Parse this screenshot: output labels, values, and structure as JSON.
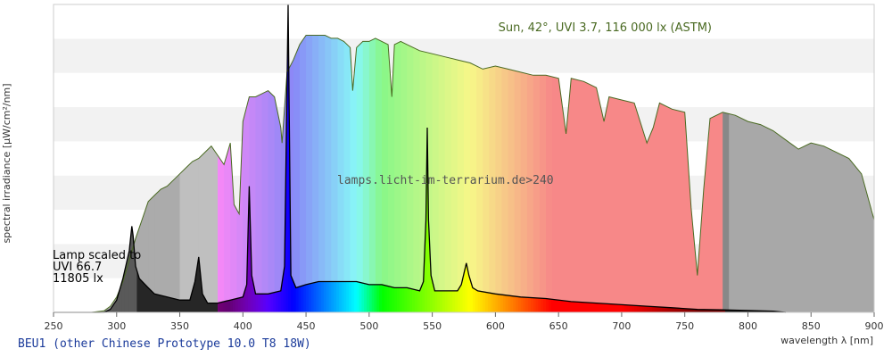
{
  "chart_data": {
    "type": "area",
    "title": "Sun, 42°, UVI 3.7, 116 000 lx (ASTM)",
    "caption": "BEU1 (other Chinese Prototype 10.0 T8 18W)",
    "watermark": "lamps.licht-im-terrarium.de>240",
    "xlabel": "wavelength λ [nm]",
    "ylabel": "spectral irradiance [µW/cm²/nm]",
    "xlim": [
      250,
      900
    ],
    "ylim": [
      0,
      1
    ],
    "x_ticks": [
      250,
      300,
      350,
      400,
      450,
      500,
      550,
      600,
      650,
      700,
      750,
      800,
      850,
      900
    ],
    "grid_bands": true,
    "lamp_note": [
      "Lamp scaled to",
      "UVI 66.7",
      "11805 lx"
    ],
    "colors": {
      "background": "#ffffff",
      "band": "#f2f2f2",
      "frame": "#cccccc",
      "sun_outline": "#4a6a22",
      "lamp_line": "#000000",
      "caption": "#1a3a9a",
      "title": "#4a6a22",
      "watermark": "#555555"
    },
    "series": [
      {
        "name": "Sun",
        "x": [
          250,
          280,
          290,
          295,
          300,
          305,
          310,
          315,
          320,
          325,
          330,
          335,
          340,
          345,
          350,
          355,
          360,
          365,
          370,
          375,
          380,
          385,
          390,
          393,
          397,
          400,
          405,
          410,
          415,
          420,
          425,
          430,
          431,
          435,
          440,
          445,
          450,
          455,
          460,
          465,
          470,
          475,
          480,
          485,
          487,
          490,
          495,
          500,
          505,
          510,
          515,
          518,
          520,
          525,
          530,
          540,
          550,
          560,
          570,
          580,
          590,
          600,
          610,
          620,
          630,
          640,
          650,
          656,
          660,
          670,
          680,
          686,
          690,
          700,
          710,
          720,
          725,
          730,
          740,
          750,
          755,
          760,
          765,
          770,
          780,
          790,
          800,
          810,
          820,
          830,
          840,
          850,
          860,
          870,
          880,
          890,
          900
        ],
        "values": [
          0,
          0,
          0.005,
          0.02,
          0.05,
          0.1,
          0.17,
          0.24,
          0.3,
          0.36,
          0.38,
          0.4,
          0.41,
          0.43,
          0.45,
          0.47,
          0.49,
          0.5,
          0.52,
          0.54,
          0.51,
          0.48,
          0.55,
          0.35,
          0.32,
          0.62,
          0.7,
          0.7,
          0.71,
          0.72,
          0.7,
          0.6,
          0.55,
          0.78,
          0.82,
          0.87,
          0.9,
          0.9,
          0.9,
          0.9,
          0.89,
          0.89,
          0.88,
          0.86,
          0.72,
          0.86,
          0.88,
          0.88,
          0.89,
          0.88,
          0.87,
          0.7,
          0.87,
          0.88,
          0.87,
          0.85,
          0.84,
          0.83,
          0.82,
          0.81,
          0.79,
          0.8,
          0.79,
          0.78,
          0.77,
          0.77,
          0.76,
          0.58,
          0.76,
          0.75,
          0.73,
          0.62,
          0.7,
          0.69,
          0.68,
          0.55,
          0.6,
          0.68,
          0.66,
          0.65,
          0.34,
          0.12,
          0.4,
          0.63,
          0.65,
          0.64,
          0.62,
          0.61,
          0.59,
          0.56,
          0.53,
          0.55,
          0.54,
          0.52,
          0.5,
          0.45,
          0.3
        ]
      },
      {
        "name": "Lamp",
        "x": [
          250,
          290,
          295,
          300,
          305,
          310,
          312,
          313,
          315,
          318,
          325,
          330,
          340,
          350,
          358,
          362,
          365,
          368,
          372,
          380,
          390,
          400,
          403,
          405,
          407,
          410,
          420,
          430,
          433,
          435.8,
          438,
          442,
          450,
          460,
          470,
          480,
          490,
          500,
          510,
          520,
          530,
          540,
          543,
          545,
          546,
          547,
          549,
          552,
          560,
          570,
          573,
          577,
          579,
          582,
          586,
          600,
          620,
          640,
          660,
          680,
          700,
          720,
          740,
          760,
          780,
          800,
          820,
          830
        ],
        "values": [
          0,
          0,
          0.01,
          0.04,
          0.11,
          0.2,
          0.28,
          0.25,
          0.15,
          0.11,
          0.08,
          0.06,
          0.05,
          0.04,
          0.04,
          0.1,
          0.18,
          0.06,
          0.03,
          0.03,
          0.04,
          0.05,
          0.09,
          0.41,
          0.12,
          0.06,
          0.06,
          0.07,
          0.15,
          1.0,
          0.12,
          0.08,
          0.09,
          0.1,
          0.1,
          0.1,
          0.1,
          0.09,
          0.09,
          0.08,
          0.08,
          0.07,
          0.1,
          0.3,
          0.6,
          0.3,
          0.12,
          0.07,
          0.07,
          0.07,
          0.09,
          0.16,
          0.12,
          0.08,
          0.07,
          0.06,
          0.05,
          0.045,
          0.035,
          0.03,
          0.025,
          0.02,
          0.015,
          0.01,
          0.008,
          0.006,
          0.004,
          0
        ]
      }
    ]
  }
}
